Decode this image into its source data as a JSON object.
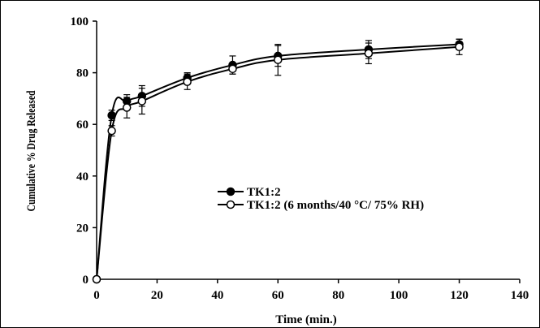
{
  "chart_data": {
    "type": "line",
    "title": "",
    "xlabel": "Time (min.)",
    "ylabel": "Cumulative % Drug Released",
    "xlim": [
      0,
      140
    ],
    "ylim": [
      0,
      100
    ],
    "xticks": [
      0,
      20,
      40,
      60,
      80,
      100,
      120,
      140
    ],
    "yticks": [
      0,
      20,
      40,
      60,
      80,
      100
    ],
    "xtick_labels": [
      "0",
      "20",
      "40",
      "60",
      "80",
      "100",
      "120",
      "140"
    ],
    "ytick_labels": [
      "0",
      "20",
      "40",
      "60",
      "80",
      "100"
    ],
    "grid": false,
    "legend_position": "center-right",
    "x": [
      0,
      5,
      10,
      15,
      30,
      45,
      60,
      90,
      120
    ],
    "series": [
      {
        "name": "TK1:2",
        "marker": "filled-circle",
        "color": "#000000",
        "values": [
          0,
          63.5,
          69,
          71,
          78,
          83,
          86.5,
          89,
          91
        ],
        "errors": [
          0,
          2,
          2.5,
          4,
          2,
          3.5,
          4,
          3.5,
          2
        ]
      },
      {
        "name": "TK1:2 (6 months/40 °C/ 75% RH)",
        "marker": "open-circle",
        "color": "#000000",
        "values": [
          0,
          57.5,
          66.5,
          69,
          76.5,
          81.5,
          85,
          87.5,
          90
        ],
        "errors": [
          0,
          2,
          4,
          5,
          3,
          2,
          6,
          4,
          3
        ]
      }
    ]
  }
}
